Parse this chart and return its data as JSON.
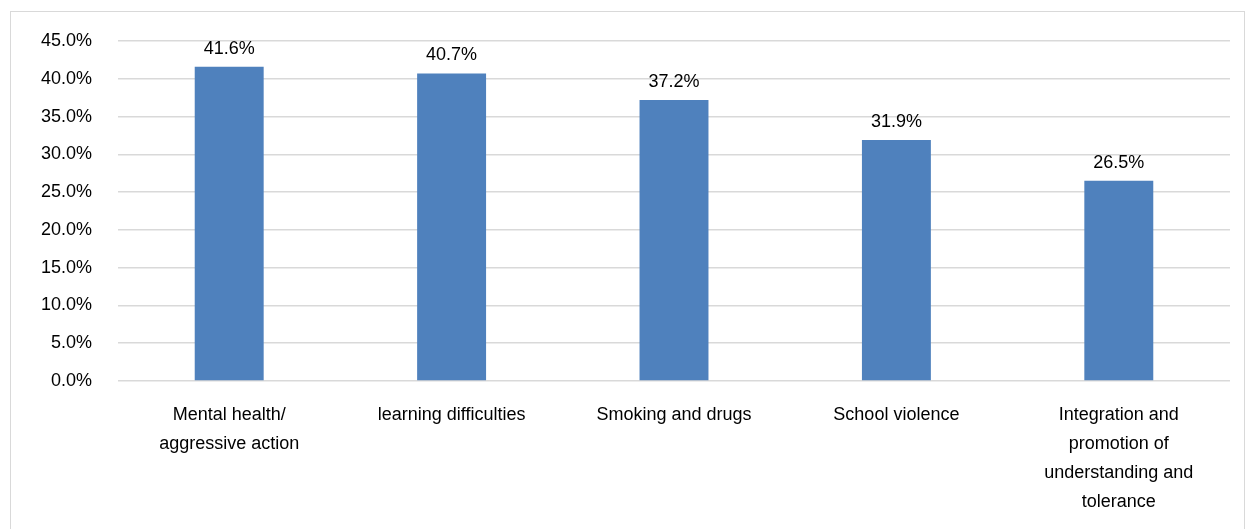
{
  "chart_data": {
    "type": "bar",
    "categories": [
      "Mental health/ aggressive action",
      "learning difficulties",
      "Smoking and drugs",
      "School violence",
      "Integration and promotion of understanding and tolerance"
    ],
    "values": [
      41.6,
      40.7,
      37.2,
      31.9,
      26.5
    ],
    "color": "#4f81bd",
    "value_labels": [
      "41.6%",
      "40.7%",
      "37.2%",
      "31.9%",
      "26.5%"
    ],
    "ylim": [
      0,
      45
    ],
    "yticks": [
      {
        "value": 0,
        "label": "0.0%"
      },
      {
        "value": 5,
        "label": "5.0%"
      },
      {
        "value": 10,
        "label": "10.0%"
      },
      {
        "value": 15,
        "label": "15.0%"
      },
      {
        "value": 20,
        "label": "20.0%"
      },
      {
        "value": 25,
        "label": "25.0%"
      },
      {
        "value": 30,
        "label": "30.0%"
      },
      {
        "value": 35,
        "label": "35.0%"
      },
      {
        "value": 40,
        "label": "40.0%"
      },
      {
        "value": 45,
        "label": "45.0%"
      }
    ],
    "grid": "y",
    "legend": false
  }
}
